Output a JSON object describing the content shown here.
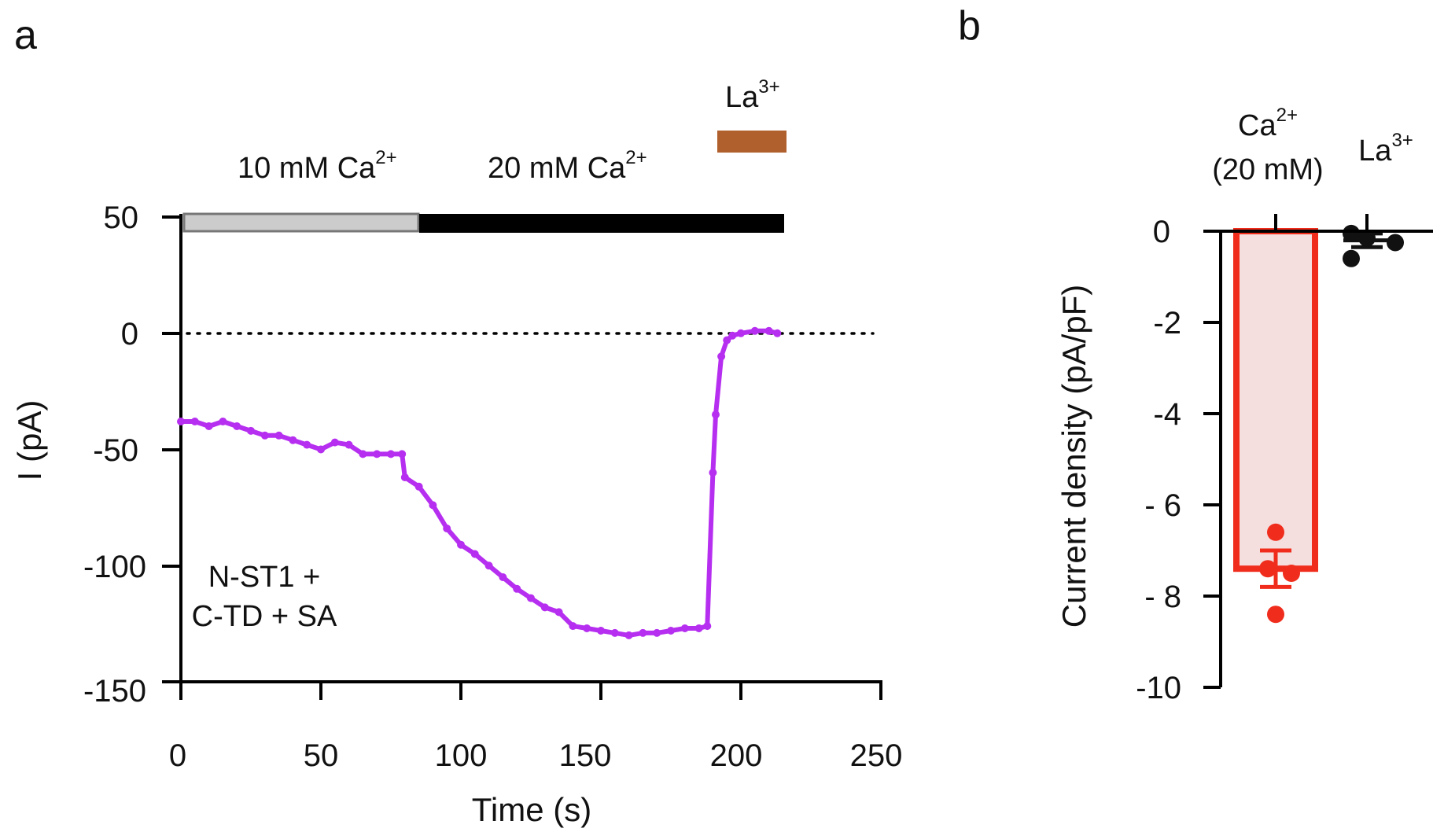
{
  "panel_a": {
    "label": "a"
  },
  "panel_b": {
    "label": "b"
  },
  "chart_data": [
    {
      "panel": "a",
      "type": "line",
      "xlabel": "Time (s)",
      "ylabel": "I (pA)",
      "xlim": [
        0,
        250
      ],
      "ylim": [
        -150,
        50
      ],
      "x_ticks": [
        "0",
        "50",
        "100",
        "150",
        "200",
        "250"
      ],
      "y_ticks": [
        "50",
        "0",
        "-50",
        "-100",
        "-150"
      ],
      "annotation_line1": "N-ST1 +",
      "annotation_line2": "C-TD + SA",
      "zero_reference": "dotted",
      "color": "#b62ff0",
      "application_bars": [
        {
          "label_main": "10 mM Ca",
          "label_sup": "2+",
          "start": 0,
          "end": 85,
          "color": "#cccccc"
        },
        {
          "label_main": "20 mM Ca",
          "label_sup": "2+",
          "start": 85,
          "end": 216,
          "color": "#000000"
        },
        {
          "label_main": "La",
          "label_sup": "3+",
          "start": 192,
          "end": 217,
          "color": "#b0602c"
        }
      ],
      "x": [
        0,
        5,
        10,
        15,
        20,
        25,
        30,
        35,
        40,
        45,
        50,
        55,
        60,
        65,
        70,
        75,
        79,
        80,
        85,
        90,
        95,
        100,
        105,
        110,
        115,
        120,
        125,
        130,
        135,
        140,
        145,
        150,
        155,
        160,
        165,
        170,
        175,
        180,
        185,
        188,
        190,
        191,
        193,
        195,
        197,
        200,
        205,
        210,
        213
      ],
      "y": [
        -38,
        -38,
        -40,
        -38,
        -40,
        -42,
        -44,
        -44,
        -46,
        -48,
        -50,
        -47,
        -48,
        -52,
        -52,
        -52,
        -52,
        -62,
        -66,
        -74,
        -84,
        -91,
        -95,
        -100,
        -105,
        -110,
        -114,
        -118,
        -120,
        -126,
        -127,
        -128,
        -129,
        -130,
        -129,
        -129,
        -128,
        -127,
        -127,
        -126,
        -60,
        -35,
        -10,
        -3,
        -1,
        0,
        1,
        1,
        0
      ]
    },
    {
      "panel": "b",
      "type": "bar",
      "ylabel": "Current density (pA/pF)",
      "ylim": [
        -10,
        0
      ],
      "y_ticks": [
        "0",
        "-2",
        "-4",
        "- 6",
        "- 8",
        "-10"
      ],
      "categories": [
        {
          "line1_main": "Ca",
          "line1_sup": "2+",
          "line2": "(20 mM)"
        },
        {
          "line1_main": "La",
          "line1_sup": "3+",
          "line2": ""
        }
      ],
      "values": [
        -7.4,
        -0.2
      ],
      "sem": [
        0.4,
        0.15
      ],
      "points": [
        [
          -6.6,
          -7.4,
          -7.5,
          -8.4
        ],
        [
          -0.05,
          -0.15,
          -0.25,
          -0.6
        ]
      ],
      "colors": [
        "#f02d1c",
        "#111111"
      ],
      "bar_fill": [
        "#f5dede",
        "none"
      ]
    }
  ]
}
